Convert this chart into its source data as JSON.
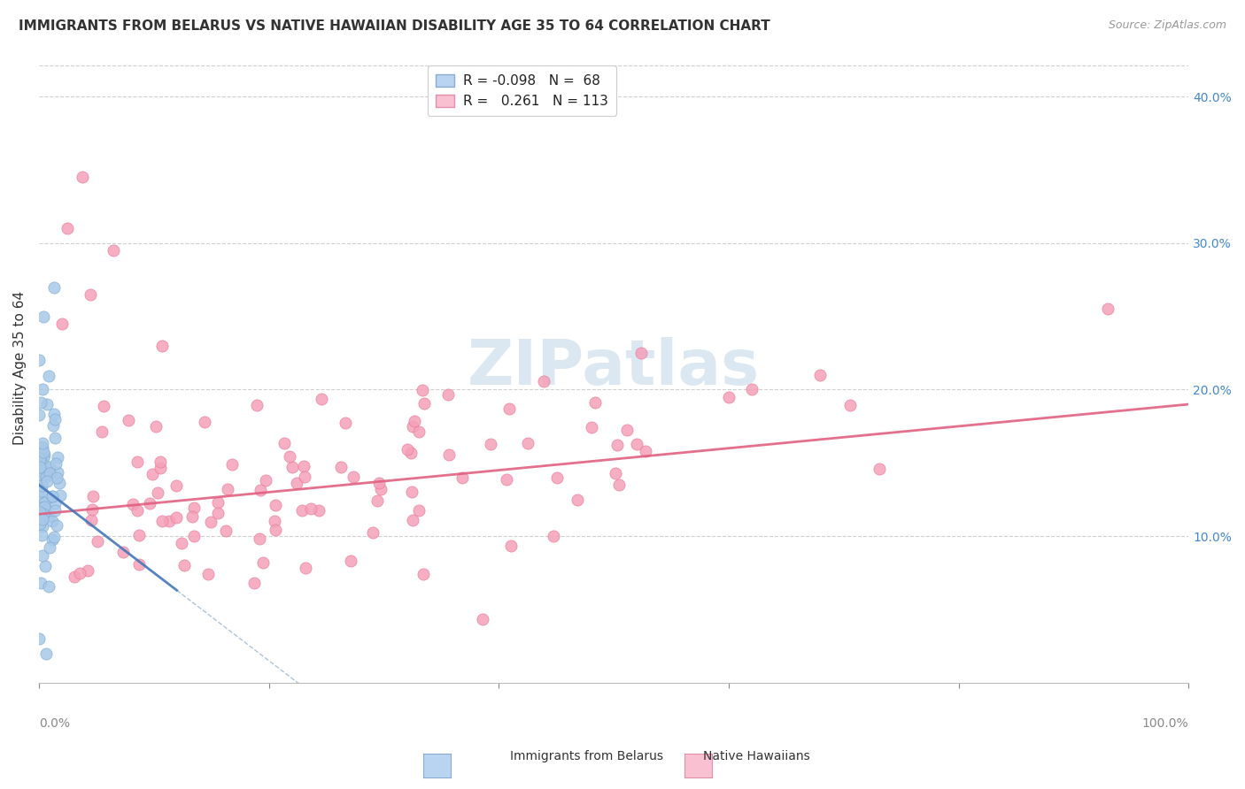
{
  "title": "IMMIGRANTS FROM BELARUS VS NATIVE HAWAIIAN DISABILITY AGE 35 TO 64 CORRELATION CHART",
  "source": "Source: ZipAtlas.com",
  "ylabel": "Disability Age 35 to 64",
  "ylabel_right_ticks": [
    "10.0%",
    "20.0%",
    "30.0%",
    "40.0%"
  ],
  "ylabel_right_vals": [
    0.1,
    0.2,
    0.3,
    0.4
  ],
  "xmin": 0.0,
  "xmax": 1.0,
  "ymin": 0.0,
  "ymax": 0.43,
  "watermark": "ZIPatlas",
  "belarus_color": "#a8c8e8",
  "hawaiian_color": "#f4a0b8",
  "belarus_edge_color": "#7aaad0",
  "hawaiian_edge_color": "#e87898",
  "belarus_trendline_color": "#4477bb",
  "hawaiian_trendline_color": "#e06080",
  "belarus_dash_color": "#88aacc",
  "grid_color": "#d0d0d0",
  "background_color": "#ffffff",
  "legend_patch1_face": "#b8d4f0",
  "legend_patch1_edge": "#8aaad0",
  "legend_patch2_face": "#f8c0d0",
  "legend_patch2_edge": "#e090a8",
  "r1": "-0.098",
  "n1": "68",
  "r2": "0.261",
  "n2": "113"
}
